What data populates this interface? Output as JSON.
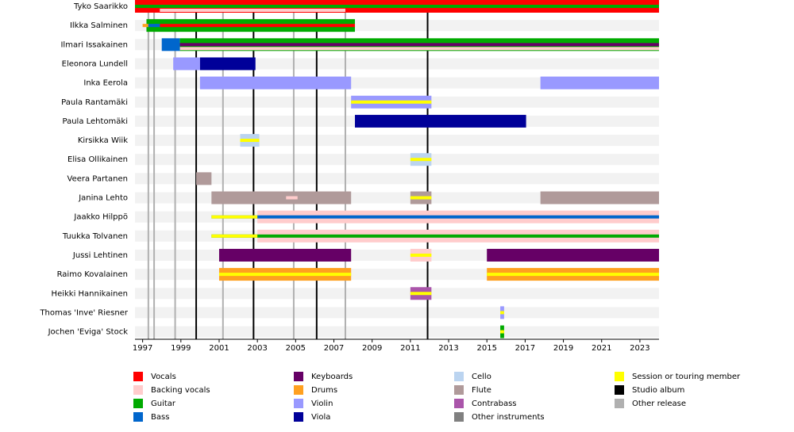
{
  "chart_data": {
    "type": "timeline",
    "xlim": [
      1996.6,
      2024
    ],
    "xticks": [
      1997,
      1999,
      2001,
      2003,
      2005,
      2007,
      2009,
      2011,
      2013,
      2015,
      2017,
      2019,
      2021,
      2023
    ],
    "legend": [
      {
        "name": "Vocals",
        "color": "#ff0000"
      },
      {
        "name": "Backing vocals",
        "color": "#ffcccc"
      },
      {
        "name": "Guitar",
        "color": "#00aa00"
      },
      {
        "name": "Bass",
        "color": "#0066cc"
      },
      {
        "name": "Keyboards",
        "color": "#660066"
      },
      {
        "name": "Drums",
        "color": "#ffa020"
      },
      {
        "name": "Violin",
        "color": "#9999ff"
      },
      {
        "name": "Viola",
        "color": "#000099"
      },
      {
        "name": "Cello",
        "color": "#bbd4f0"
      },
      {
        "name": "Flute",
        "color": "#b09a9a"
      },
      {
        "name": "Contrabass",
        "color": "#aa55aa"
      },
      {
        "name": "Other instruments",
        "color": "#808080"
      },
      {
        "name": "Session or touring member",
        "color": "#ffff00"
      },
      {
        "name": "Studio album",
        "color": "#000000"
      },
      {
        "name": "Other release",
        "color": "#b0b0b0"
      }
    ],
    "studio_albums": [
      1999.8,
      2002.8,
      2006.1,
      2011.9
    ],
    "other_releases": [
      1997.3,
      1997.6,
      1998.7,
      2001.2,
      2004.9,
      2007.6
    ],
    "rows": [
      {
        "name": "Tyko Saarikko",
        "bars": [
          {
            "role": "Vocals",
            "start": 1996.6,
            "end": 2024
          },
          {
            "role": "Guitar",
            "start": 1996.6,
            "end": 2024
          },
          {
            "role": "Backing vocals",
            "start": 1997.9,
            "end": 2007.6
          },
          {
            "role": "Other instruments",
            "start": 1997.3,
            "end": 2003
          }
        ]
      },
      {
        "name": "Ilkka Salminen",
        "bars": [
          {
            "role": "Guitar",
            "start": 1997.2,
            "end": 2008.1
          },
          {
            "role": "Vocals",
            "start": 1997.9,
            "end": 2008.1
          },
          {
            "role": "Drums",
            "start": 1997,
            "end": 1997.3
          },
          {
            "role": "Bass",
            "start": 1997.3,
            "end": 1997.9
          }
        ]
      },
      {
        "name": "Ilmari Issakainen",
        "bars": [
          {
            "role": "Bass",
            "start": 1998,
            "end": 1998.95
          },
          {
            "role": "Guitar",
            "start": 1998.95,
            "end": 2024
          },
          {
            "role": "Keyboards",
            "start": 1998.95,
            "end": 2024
          },
          {
            "role": "Backing vocals",
            "start": 1998.95,
            "end": 2024
          }
        ]
      },
      {
        "name": "Eleonora Lundell",
        "bars": [
          {
            "role": "Violin",
            "start": 1998.6,
            "end": 2000
          },
          {
            "role": "Viola",
            "start": 2000,
            "end": 2002.9
          }
        ]
      },
      {
        "name": "Inka Eerola",
        "bars": [
          {
            "role": "Violin",
            "start": 2000,
            "end": 2007.9
          },
          {
            "role": "Violin",
            "start": 2017.8,
            "end": 2024
          }
        ]
      },
      {
        "name": "Paula Rantamäki",
        "bars": [
          {
            "role": "Violin",
            "start": 2007.9,
            "end": 2012.1
          },
          {
            "role": "Session or touring member",
            "start": 2007.9,
            "end": 2012.1
          }
        ]
      },
      {
        "name": "Paula Lehtomäki",
        "bars": [
          {
            "role": "Viola",
            "start": 2008.1,
            "end": 2017.05
          }
        ]
      },
      {
        "name": "Kirsikka Wiik",
        "bars": [
          {
            "role": "Cello",
            "start": 2002.1,
            "end": 2003.1
          },
          {
            "role": "Session or touring member",
            "start": 2002.1,
            "end": 2003.1
          }
        ]
      },
      {
        "name": "Elisa Ollikainen",
        "bars": [
          {
            "role": "Cello",
            "start": 2011,
            "end": 2012.1
          },
          {
            "role": "Session or touring member",
            "start": 2011,
            "end": 2012.1
          }
        ]
      },
      {
        "name": "Veera Partanen",
        "bars": [
          {
            "role": "Flute",
            "start": 1999.8,
            "end": 2000.6
          }
        ]
      },
      {
        "name": "Janina Lehto",
        "bars": [
          {
            "role": "Flute",
            "start": 2000.6,
            "end": 2007.9
          },
          {
            "role": "Backing vocals",
            "start": 2004.5,
            "end": 2005.1
          },
          {
            "role": "Flute",
            "start": 2011,
            "end": 2012.1
          },
          {
            "role": "Session or touring member",
            "start": 2011,
            "end": 2012.1
          },
          {
            "role": "Flute",
            "start": 2017.8,
            "end": 2024
          }
        ]
      },
      {
        "name": "Jaakko Hilppö",
        "bars": [
          {
            "role": "Backing vocals",
            "start": 2003,
            "end": 2024
          },
          {
            "role": "Bass",
            "start": 2000.6,
            "end": 2024
          },
          {
            "role": "Session or touring member",
            "start": 2000.6,
            "end": 2003
          }
        ]
      },
      {
        "name": "Tuukka Tolvanen",
        "bars": [
          {
            "role": "Backing vocals",
            "start": 2003,
            "end": 2024
          },
          {
            "role": "Guitar",
            "start": 2000.6,
            "end": 2024
          },
          {
            "role": "Session or touring member",
            "start": 2000.6,
            "end": 2003
          }
        ]
      },
      {
        "name": "Jussi Lehtinen",
        "bars": [
          {
            "role": "Keyboards",
            "start": 2001,
            "end": 2007.9
          },
          {
            "role": "Backing vocals",
            "start": 2011,
            "end": 2012.1
          },
          {
            "role": "Session or touring member",
            "start": 2011,
            "end": 2012.1
          },
          {
            "role": "Keyboards",
            "start": 2015,
            "end": 2024
          }
        ]
      },
      {
        "name": "Raimo Kovalainen",
        "bars": [
          {
            "role": "Drums",
            "start": 2001,
            "end": 2007.9
          },
          {
            "role": "Session or touring member",
            "start": 2001,
            "end": 2007.9
          },
          {
            "role": "Drums",
            "start": 2015,
            "end": 2024
          },
          {
            "role": "Session or touring member",
            "start": 2015,
            "end": 2024
          }
        ]
      },
      {
        "name": "Heikki Hannikainen",
        "bars": [
          {
            "role": "Contrabass",
            "start": 2011,
            "end": 2012.1
          },
          {
            "role": "Session or touring member",
            "start": 2011,
            "end": 2012.1
          }
        ]
      },
      {
        "name": "Thomas 'Inve' Riesner",
        "bars": [
          {
            "role": "Violin",
            "start": 2015.7,
            "end": 2015.9
          },
          {
            "role": "Session or touring member",
            "start": 2015.7,
            "end": 2015.9
          }
        ]
      },
      {
        "name": "Jochen 'Eviga' Stock",
        "bars": [
          {
            "role": "Guitar",
            "start": 2015.7,
            "end": 2015.9
          },
          {
            "role": "Session or touring member",
            "start": 2015.7,
            "end": 2015.9
          }
        ]
      }
    ]
  }
}
